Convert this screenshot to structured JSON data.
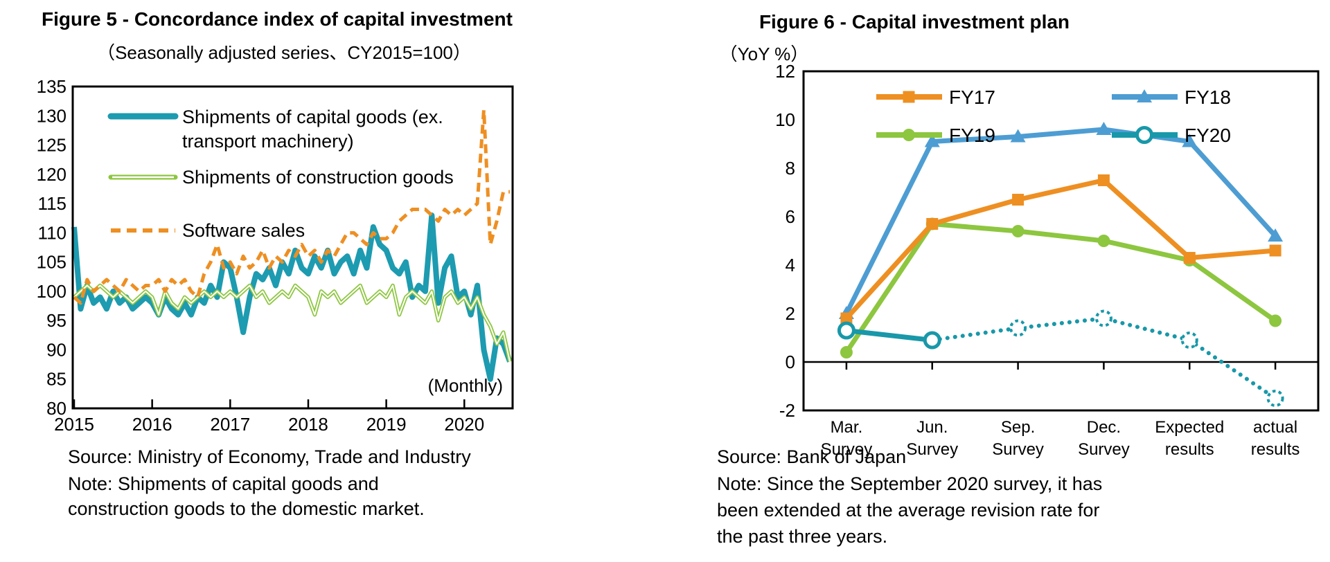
{
  "figure5": {
    "title": "Figure 5 - Concordance index of capital investment",
    "subtitle": "（Seasonally adjusted series、CY2015=100）",
    "annotation": "(Monthly)",
    "source": "Source: Ministry of Economy, Trade and Industry",
    "note_line1": "Note: Shipments of capital goods and",
    "note_line2": "construction goods to the domestic market."
  },
  "figure6": {
    "title": "Figure 6 - Capital investment plan",
    "subtitle": "（YoY %）",
    "source": "Source: Bank of Japan",
    "note_line1": "Note: Since the September 2020 survey, it has",
    "note_line2": "been extended at the average revision rate for",
    "note_line3": "the past three years."
  },
  "chart_data": [
    {
      "id": "figure5",
      "type": "line",
      "title": "Figure 5 - Concordance index of capital investment",
      "subtitle": "（Seasonally adjusted series、CY2015=100）",
      "x_unit": "month",
      "x_range": "2015-01 to 2020-08",
      "x_tick_labels": [
        "2015",
        "2016",
        "2017",
        "2018",
        "2019",
        "2020"
      ],
      "y_ticks": [
        80,
        85,
        90,
        95,
        100,
        105,
        110,
        115,
        120,
        125,
        130,
        135
      ],
      "ylim": [
        80,
        135
      ],
      "grid": false,
      "legend_position": "inside-top-left",
      "annotation": "(Monthly)",
      "series": [
        {
          "name": "Shipments of capital goods (ex. transport machinery)",
          "legend_lines": [
            "Shipments of capital goods (ex.",
            "transport machinery)"
          ],
          "color": "#1D9BB0",
          "style": "solid-thick",
          "values": [
            111,
            97,
            101,
            98,
            99,
            97,
            100,
            98,
            99,
            97,
            98,
            99,
            98,
            96,
            99,
            97,
            96,
            98,
            96,
            99,
            98,
            101,
            99,
            105,
            104,
            99,
            93,
            99,
            103,
            102,
            104,
            101,
            105,
            103,
            107,
            104,
            103,
            106,
            104,
            107,
            103,
            105,
            106,
            103,
            107,
            104,
            111,
            108,
            107,
            104,
            103,
            105,
            99,
            101,
            100,
            113,
            98,
            104,
            106,
            99,
            100,
            96,
            101,
            90,
            85,
            92,
            91,
            88
          ]
        },
        {
          "name": "Shipments of construction goods",
          "legend_lines": [
            "Shipments of construction goods"
          ],
          "color": "#8DC63F",
          "style": "double-line",
          "values": [
            99,
            100,
            101,
            100,
            101,
            100,
            99,
            100,
            99,
            98,
            99,
            100,
            99,
            96,
            100,
            98,
            97,
            99,
            98,
            99,
            100,
            99,
            100,
            99,
            100,
            99,
            100,
            101,
            99,
            100,
            98,
            99,
            100,
            99,
            101,
            100,
            99,
            96,
            100,
            99,
            100,
            98,
            99,
            100,
            101,
            98,
            99,
            100,
            99,
            101,
            96,
            99,
            100,
            99,
            98,
            100,
            95,
            99,
            100,
            98,
            99,
            97,
            99,
            96,
            94,
            91,
            93,
            88
          ]
        },
        {
          "name": "Software sales",
          "legend_lines": [
            "Software sales"
          ],
          "color": "#EE8F22",
          "style": "dashed",
          "values": [
            99,
            98,
            102,
            100,
            101,
            102,
            101,
            100,
            102,
            101,
            100,
            101,
            101,
            102,
            100,
            102,
            101,
            102,
            100,
            99,
            103,
            105,
            108,
            104,
            105,
            103,
            106,
            104,
            105,
            107,
            104,
            106,
            105,
            107,
            106,
            108,
            106,
            107,
            105,
            107,
            106,
            108,
            110,
            110,
            109,
            108,
            110,
            109,
            109,
            110,
            112,
            113,
            114,
            114,
            114,
            113,
            112,
            114,
            113,
            114,
            113,
            114,
            115,
            131,
            108,
            112,
            117,
            117
          ]
        }
      ]
    },
    {
      "id": "figure6",
      "type": "line",
      "title": "Figure 6 - Capital investment plan",
      "subtitle": "（YoY %）",
      "categories": [
        [
          "Mar.",
          "Survey"
        ],
        [
          "Jun.",
          "Survey"
        ],
        [
          "Sep.",
          "Survey"
        ],
        [
          "Dec.",
          "Survey"
        ],
        [
          "Expected",
          "results"
        ],
        [
          "actual",
          "results"
        ]
      ],
      "y_ticks": [
        -2,
        0,
        2,
        4,
        6,
        8,
        10,
        12
      ],
      "ylim": [
        -2,
        12
      ],
      "grid": false,
      "legend_position": "inside-top",
      "series": [
        {
          "name": "FY17",
          "color": "#EE8F22",
          "marker": "square",
          "values": [
            1.8,
            5.7,
            6.7,
            7.5,
            4.3,
            4.6
          ]
        },
        {
          "name": "FY18",
          "color": "#4D9DD3",
          "marker": "triangle",
          "values": [
            2.0,
            9.1,
            9.3,
            9.6,
            9.1,
            5.2
          ]
        },
        {
          "name": "FY19",
          "color": "#8DC63F",
          "marker": "circle",
          "values": [
            0.4,
            5.7,
            5.4,
            5.0,
            4.2,
            1.7
          ]
        },
        {
          "name": "FY20",
          "color": "#1898A9",
          "marker": "open-circle",
          "values": [
            1.3,
            0.9,
            1.4,
            1.8,
            0.9,
            -1.5
          ],
          "dotted_from_index": 1
        }
      ]
    }
  ]
}
